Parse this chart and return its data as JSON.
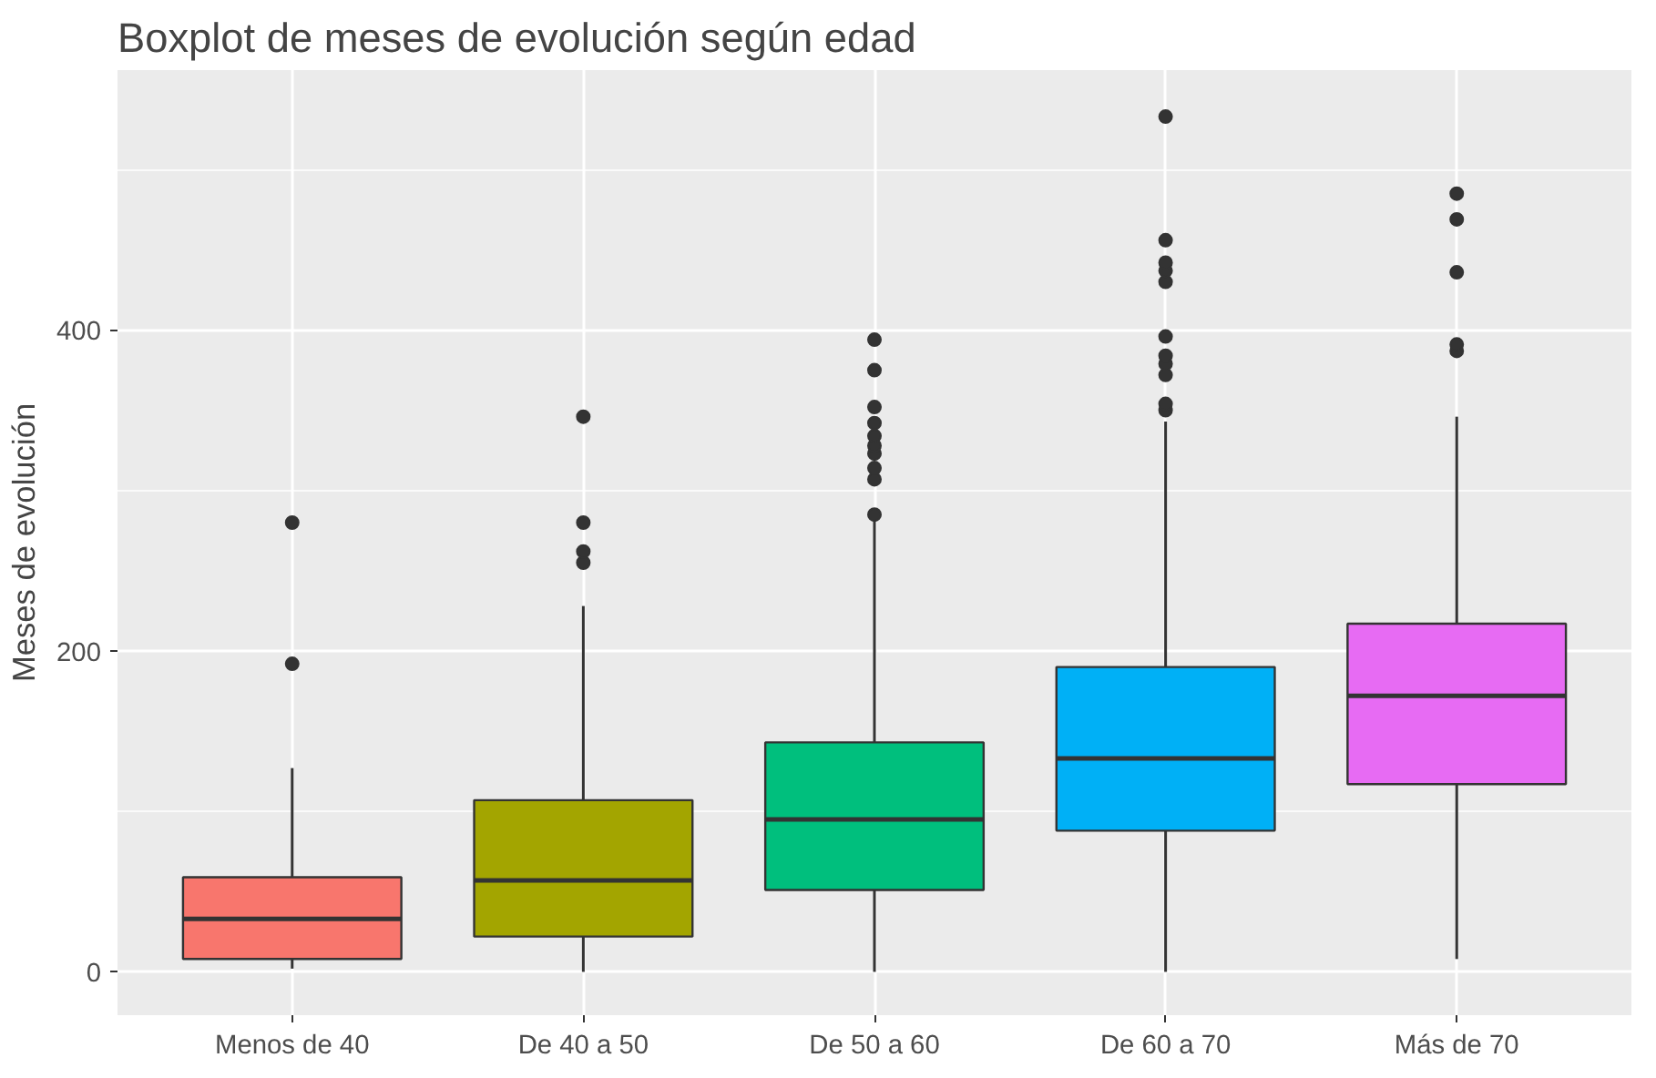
{
  "chart_data": {
    "type": "box",
    "title": "Boxplot de meses de evolución según edad",
    "ylabel": "Meses de evolución",
    "categories": [
      "Menos de 40",
      "De 40 a 50",
      "De 50 a 60",
      "De 60 a 70",
      "Más de 70"
    ],
    "colors": [
      "#f8766d",
      "#a3a500",
      "#00bf7d",
      "#00b0f6",
      "#e76bf3"
    ],
    "boxes": [
      {
        "low": 2,
        "q1": 8,
        "median": 33,
        "q3": 59,
        "high": 127,
        "outliers": [
          192,
          280
        ]
      },
      {
        "low": 0,
        "q1": 22,
        "median": 57,
        "q3": 107,
        "high": 228,
        "outliers": [
          255,
          262,
          280,
          346
        ]
      },
      {
        "low": 0,
        "q1": 51,
        "median": 95,
        "q3": 143,
        "high": 282,
        "outliers": [
          285,
          307,
          314,
          323,
          328,
          334,
          342,
          352,
          375,
          394
        ]
      },
      {
        "low": 0,
        "q1": 88,
        "median": 133,
        "q3": 190,
        "high": 343,
        "outliers": [
          350,
          354,
          372,
          379,
          384,
          396,
          430,
          437,
          442,
          456,
          533
        ]
      },
      {
        "low": 8,
        "q1": 117,
        "median": 172,
        "q3": 217,
        "high": 346,
        "outliers": [
          387,
          391,
          436,
          469,
          485
        ]
      }
    ],
    "ylim": [
      -27,
      562
    ],
    "yticks": [
      0,
      200,
      400
    ],
    "grid": true
  }
}
